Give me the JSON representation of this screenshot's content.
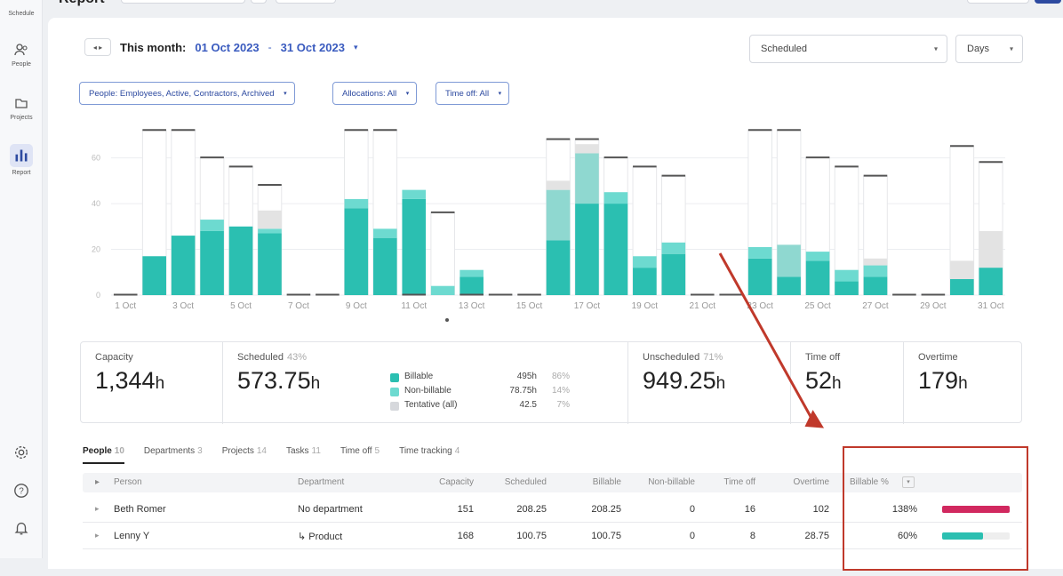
{
  "sidebar": {
    "items": [
      {
        "label": "Schedule",
        "icon": "calendar-icon"
      },
      {
        "label": "People",
        "icon": "people-icon"
      },
      {
        "label": "Projects",
        "icon": "folder-icon"
      },
      {
        "label": "Report",
        "icon": "bar-chart-icon"
      }
    ],
    "bottom_icons": [
      "gear-icon",
      "help-icon",
      "bell-icon"
    ]
  },
  "header": {
    "title": "Report"
  },
  "date_range": {
    "prefix": "This month:",
    "start": "01 Oct 2023",
    "separator": "-",
    "end": "31 Oct 2023"
  },
  "controls": {
    "view_select": "Scheduled",
    "unit_select": "Days"
  },
  "filters": [
    {
      "label": "People: Employees, Active, Contractors, Archived"
    },
    {
      "label": "Allocations: All"
    },
    {
      "label": "Time off: All"
    }
  ],
  "chart_data": {
    "type": "bar",
    "stacked": true,
    "ylim": [
      0,
      60
    ],
    "yticks": [
      0,
      20,
      40,
      60
    ],
    "categories": [
      "1 Oct",
      "2 Oct",
      "3 Oct",
      "4 Oct",
      "5 Oct",
      "6 Oct",
      "7 Oct",
      "8 Oct",
      "9 Oct",
      "10 Oct",
      "11 Oct",
      "12 Oct",
      "13 Oct",
      "14 Oct",
      "15 Oct",
      "16 Oct",
      "17 Oct",
      "18 Oct",
      "19 Oct",
      "20 Oct",
      "21 Oct",
      "22 Oct",
      "23 Oct",
      "24 Oct",
      "25 Oct",
      "26 Oct",
      "27 Oct",
      "28 Oct",
      "29 Oct",
      "30 Oct",
      "31 Oct"
    ],
    "xtick_labels": [
      "1 Oct",
      "3 Oct",
      "5 Oct",
      "7 Oct",
      "9 Oct",
      "11 Oct",
      "13 Oct",
      "15 Oct",
      "17 Oct",
      "19 Oct",
      "21 Oct",
      "23 Oct",
      "25 Oct",
      "27 Oct",
      "29 Oct",
      "31 Oct"
    ],
    "series": [
      {
        "name": "Billable",
        "color": "#2bbfb1",
        "values": [
          0,
          17,
          26,
          28,
          30,
          27,
          0,
          0,
          38,
          25,
          42,
          0,
          8,
          0,
          0,
          24,
          40,
          40,
          12,
          18,
          0,
          0,
          16,
          8,
          15,
          6,
          8,
          0,
          0,
          7,
          12
        ]
      },
      {
        "name": "Non-billable",
        "color": "#6ddad0",
        "values": [
          0,
          0,
          0,
          5,
          0,
          2,
          0,
          0,
          4,
          4,
          4,
          4,
          3,
          0,
          0,
          0,
          0,
          5,
          5,
          5,
          0,
          0,
          5,
          0,
          4,
          5,
          5,
          0,
          0,
          0,
          0
        ]
      },
      {
        "name": "Tentative (all)",
        "color": "#8fd8d0",
        "values": [
          0,
          0,
          0,
          0,
          0,
          0,
          0,
          0,
          0,
          0,
          0,
          0,
          0,
          0,
          0,
          22,
          22,
          0,
          0,
          0,
          0,
          0,
          0,
          14,
          0,
          0,
          0,
          0,
          0,
          0,
          0
        ]
      },
      {
        "name": "Time off",
        "color": "#e3e3e3",
        "values": [
          0,
          0,
          0,
          0,
          0,
          8,
          0,
          0,
          0,
          0,
          0,
          0,
          0,
          0,
          0,
          4,
          4,
          0,
          0,
          0,
          0,
          0,
          0,
          0,
          0,
          0,
          3,
          0,
          0,
          8,
          16
        ]
      }
    ],
    "capacity": [
      0,
      72,
      72,
      60,
      56,
      48,
      0,
      0,
      72,
      72,
      0,
      36,
      0,
      0,
      0,
      68,
      68,
      60,
      56,
      52,
      0,
      0,
      72,
      72,
      60,
      56,
      52,
      0,
      0,
      65,
      58
    ],
    "grid": true
  },
  "stats": {
    "capacity": {
      "label": "Capacity",
      "value": "1,344",
      "unit": "h"
    },
    "scheduled": {
      "label": "Scheduled",
      "pct": "43%",
      "value": "573.75",
      "unit": "h",
      "breakdown": [
        {
          "name": "Billable",
          "hours": "495h",
          "pct": "86%",
          "color": "#2bbfb1"
        },
        {
          "name": "Non-billable",
          "hours": "78.75h",
          "pct": "14%",
          "color": "#6ddad0"
        },
        {
          "name": "Tentative (all)",
          "hours": "42.5",
          "pct": "7%",
          "color": "#d6d8dc"
        }
      ]
    },
    "unscheduled": {
      "label": "Unscheduled",
      "pct": "71%",
      "value": "949.25",
      "unit": "h"
    },
    "time_off": {
      "label": "Time off",
      "value": "52",
      "unit": "h"
    },
    "overtime": {
      "label": "Overtime",
      "value": "179",
      "unit": "h"
    }
  },
  "tabs": [
    {
      "label": "People",
      "count": "10"
    },
    {
      "label": "Departments",
      "count": "3"
    },
    {
      "label": "Projects",
      "count": "14"
    },
    {
      "label": "Tasks",
      "count": "11"
    },
    {
      "label": "Time off",
      "count": "5"
    },
    {
      "label": "Time tracking",
      "count": "4"
    }
  ],
  "table": {
    "headers": [
      "Person",
      "Department",
      "Capacity",
      "Scheduled",
      "Billable",
      "Non-billable",
      "Time off",
      "Overtime",
      "Billable %"
    ],
    "rows": [
      {
        "person": "Beth Romer",
        "department": "No department",
        "capacity": "151",
        "scheduled": "208.25",
        "billable": "208.25",
        "non_billable": "0",
        "time_off": "16",
        "overtime": "102",
        "billable_pct": "138%",
        "bar_fraction": 1.0,
        "bar_color": "#d1285f"
      },
      {
        "person": "Lenny Y",
        "department": "↳ Product",
        "capacity": "168",
        "scheduled": "100.75",
        "billable": "100.75",
        "non_billable": "0",
        "time_off": "8",
        "overtime": "28.75",
        "billable_pct": "60%",
        "bar_fraction": 0.6,
        "bar_color": "#2bbfb1"
      }
    ]
  }
}
